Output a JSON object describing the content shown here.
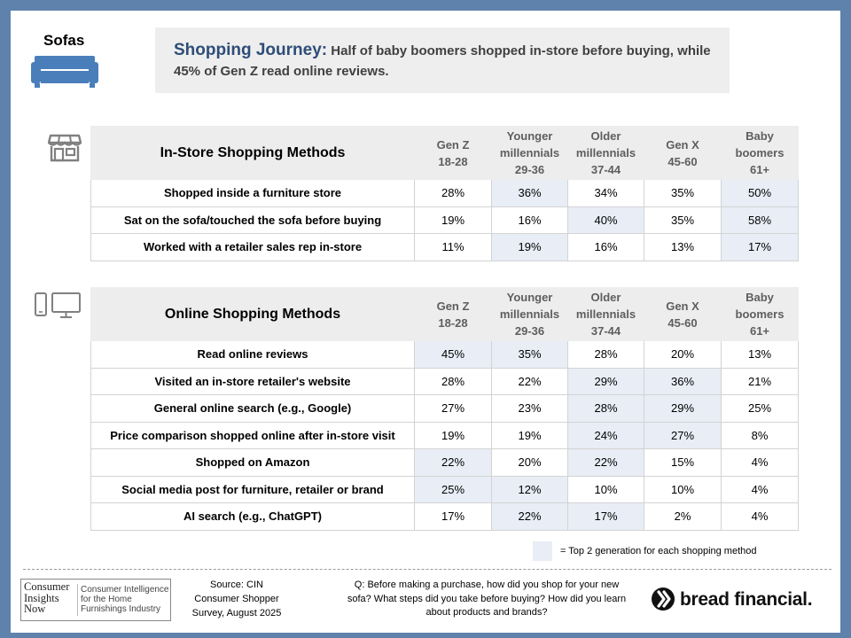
{
  "header": {
    "category": "Sofas",
    "headline_lead": "Shopping Journey:",
    "headline_text": "Half of baby boomers shopped in-store before buying, while 45% of Gen Z read online reviews."
  },
  "generations": [
    {
      "line1": "",
      "line2": "Gen Z",
      "line3": "18-28"
    },
    {
      "line1": "Younger",
      "line2": "millennials",
      "line3": "29-36"
    },
    {
      "line1": "Older",
      "line2": "millennials",
      "line3": "37-44"
    },
    {
      "line1": "",
      "line2": "Gen X",
      "line3": "45-60"
    },
    {
      "line1": "Baby",
      "line2": "boomers",
      "line3": "61+"
    }
  ],
  "instore": {
    "title": "In-Store Shopping Methods",
    "rows": [
      {
        "label": "Shopped inside a furniture store",
        "values": [
          "28%",
          "36%",
          "34%",
          "35%",
          "50%"
        ]
      },
      {
        "label": "Sat on the sofa/touched the sofa before buying",
        "values": [
          "19%",
          "16%",
          "40%",
          "35%",
          "58%"
        ]
      },
      {
        "label": "Worked with a retailer sales rep in-store",
        "values": [
          "11%",
          "19%",
          "16%",
          "13%",
          "17%"
        ]
      }
    ]
  },
  "online": {
    "title": "Online Shopping Methods",
    "rows": [
      {
        "label": "Read online reviews",
        "values": [
          "45%",
          "35%",
          "28%",
          "20%",
          "13%"
        ]
      },
      {
        "label": "Visited an in-store retailer's website",
        "values": [
          "28%",
          "22%",
          "29%",
          "36%",
          "21%"
        ]
      },
      {
        "label": "General online search (e.g., Google)",
        "values": [
          "27%",
          "23%",
          "28%",
          "29%",
          "25%"
        ]
      },
      {
        "label": "Price comparison shopped online after in-store visit",
        "values": [
          "19%",
          "19%",
          "24%",
          "27%",
          "8%"
        ]
      },
      {
        "label": "Shopped on Amazon",
        "values": [
          "22%",
          "20%",
          "22%",
          "15%",
          "4%"
        ]
      },
      {
        "label": "Social media post for furniture, retailer or brand",
        "values": [
          "25%",
          "12%",
          "10%",
          "10%",
          "4%"
        ]
      },
      {
        "label": "AI search (e.g., ChatGPT)",
        "values": [
          "17%",
          "22%",
          "17%",
          "2%",
          "4%"
        ]
      }
    ]
  },
  "legend": {
    "text": "= Top 2 generation for each shopping method",
    "highlight_color": "#e8edf6"
  },
  "footer": {
    "cin_logo_line1": "Consumer",
    "cin_logo_line2": "Insights",
    "cin_logo_line3": "Now",
    "cin_tag_line1": "Consumer Intelligence",
    "cin_tag_line2": "for the Home",
    "cin_tag_line3": "Furnishings Industry",
    "source_line1": "Source: CIN",
    "source_line2": "Consumer Shopper",
    "source_line3": "Survey, August 2025",
    "question": "Q: Before making a purchase, how did you shop for your new sofa? What steps did you take before buying? How did you learn about products and brands?",
    "brand": "bread financial."
  },
  "colors": {
    "frame": "#5e82ab",
    "accent_blue": "#2e4d78",
    "icon_blue": "#4a7ebb",
    "header_gray": "#ededed"
  },
  "icons": {
    "category": "sofa-icon",
    "instore": "store-icon",
    "online": "phone-and-monitor-icon",
    "brand": "bread-mark-icon"
  }
}
